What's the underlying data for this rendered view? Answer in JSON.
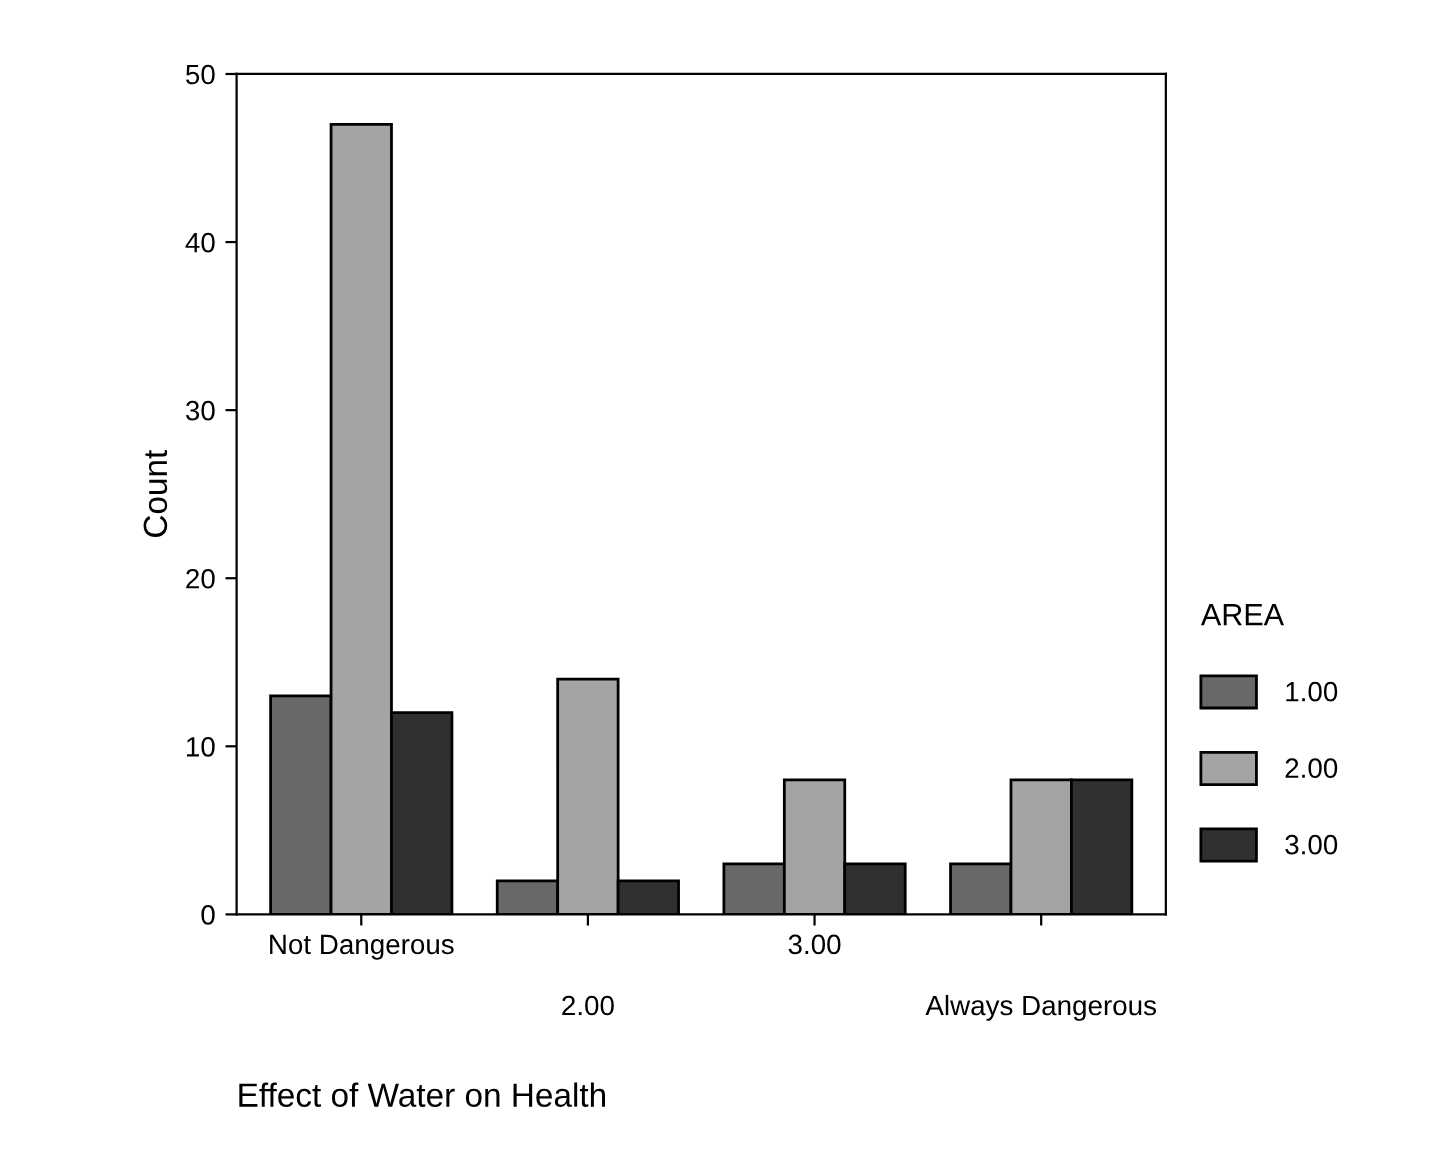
{
  "chart_data": {
    "type": "bar",
    "xlabel": "Effect of Water on Health",
    "ylabel": "Count",
    "legend_title": "AREA",
    "categories": [
      "Not Dangerous",
      "2.00",
      "3.00",
      "Always Dangerous"
    ],
    "series": [
      {
        "name": "1.00",
        "color": "#686868",
        "values": [
          13,
          2,
          3,
          3
        ]
      },
      {
        "name": "2.00",
        "color": "#a4a4a4",
        "values": [
          47,
          14,
          8,
          8
        ]
      },
      {
        "name": "3.00",
        "color": "#303030",
        "values": [
          12,
          2,
          3,
          8
        ]
      }
    ],
    "ylim": [
      0,
      50
    ],
    "yticks": [
      0,
      10,
      20,
      30,
      40,
      50
    ],
    "grid": false,
    "legend": "right"
  }
}
